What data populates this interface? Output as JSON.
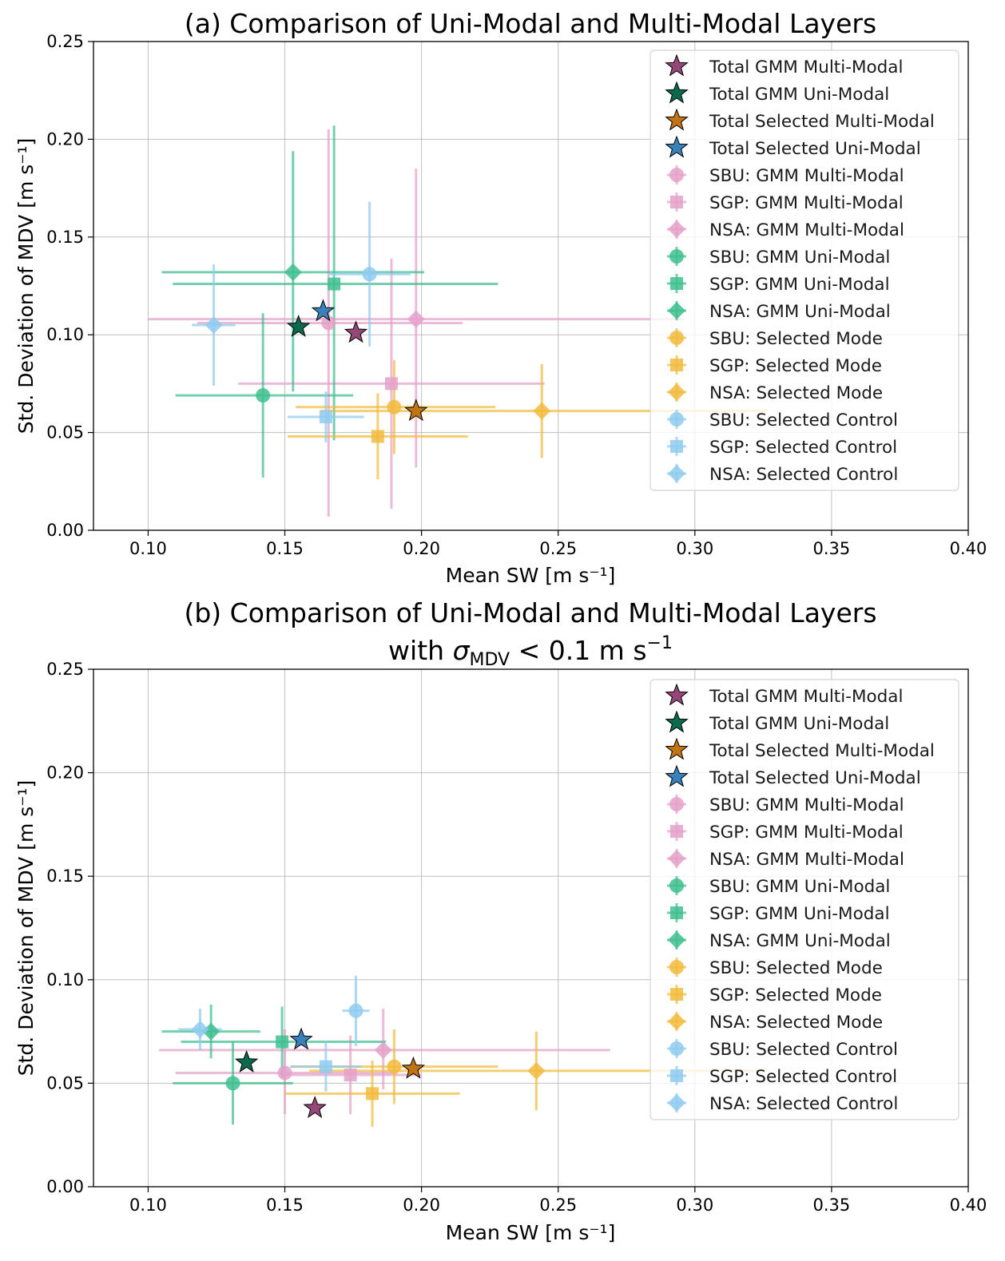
{
  "colors": {
    "gmm_multi": "#e5a1c9",
    "gmm_uni": "#3fbf8f",
    "sel_mode": "#f2bb3e",
    "sel_control": "#8fcbf0",
    "total_gmm_multi": "#954778",
    "total_gmm_uni": "#0a6a4b",
    "total_sel_multi": "#c07413",
    "total_sel_uni": "#3a80b9"
  },
  "chart_data": [
    {
      "type": "scatter",
      "title_lines": [
        "(a) Comparison of Uni-Modal and Multi-Modal Layers"
      ],
      "xlabel": "Mean SW [m s⁻¹]",
      "ylabel": "Std. Deviation of MDV [m s⁻¹]",
      "xlim": [
        0.08,
        0.4
      ],
      "ylim": [
        0.0,
        0.25
      ],
      "xticks": [
        0.1,
        0.15,
        0.2,
        0.25,
        0.3,
        0.35,
        0.4
      ],
      "xtick_labels": [
        "0.10",
        "0.15",
        "0.20",
        "0.25",
        "0.30",
        "0.35",
        "0.40"
      ],
      "yticks": [
        0.0,
        0.05,
        0.1,
        0.15,
        0.2,
        0.25
      ],
      "ytick_labels": [
        "0.00",
        "0.05",
        "0.10",
        "0.15",
        "0.20",
        "0.25"
      ],
      "grid": true,
      "legend_position": "top-right",
      "series": [
        {
          "name": "Total GMM Multi-Modal",
          "marker": "star",
          "color_key": "total_gmm_multi",
          "x": 0.176,
          "y": 0.101,
          "xerr": [
            0,
            0
          ],
          "yerr": [
            0,
            0
          ]
        },
        {
          "name": "Total GMM Uni-Modal",
          "marker": "star",
          "color_key": "total_gmm_uni",
          "x": 0.155,
          "y": 0.104,
          "xerr": [
            0,
            0
          ],
          "yerr": [
            0,
            0
          ]
        },
        {
          "name": "Total Selected Multi-Modal",
          "marker": "star",
          "color_key": "total_sel_multi",
          "x": 0.198,
          "y": 0.061,
          "xerr": [
            0,
            0
          ],
          "yerr": [
            0,
            0
          ]
        },
        {
          "name": "Total Selected Uni-Modal",
          "marker": "star",
          "color_key": "total_sel_uni",
          "x": 0.164,
          "y": 0.112,
          "xerr": [
            0,
            0
          ],
          "yerr": [
            0,
            0
          ]
        },
        {
          "name": "SBU: GMM Multi-Modal",
          "marker": "circle",
          "color_key": "gmm_multi",
          "x": 0.166,
          "y": 0.106,
          "xerr": [
            0.048,
            0.049
          ],
          "yerr": [
            0.099,
            0.099
          ]
        },
        {
          "name": "SGP: GMM Multi-Modal",
          "marker": "square",
          "color_key": "gmm_multi",
          "x": 0.189,
          "y": 0.075,
          "xerr": [
            0.056,
            0.056
          ],
          "yerr": [
            0.064,
            0.064
          ]
        },
        {
          "name": "NSA: GMM Multi-Modal",
          "marker": "diamond",
          "color_key": "gmm_multi",
          "x": 0.198,
          "y": 0.108,
          "xerr": [
            0.098,
            0.098
          ],
          "yerr": [
            0.076,
            0.077
          ]
        },
        {
          "name": "SBU: GMM Uni-Modal",
          "marker": "circle",
          "color_key": "gmm_uni",
          "x": 0.142,
          "y": 0.069,
          "xerr": [
            0.032,
            0.033
          ],
          "yerr": [
            0.042,
            0.042
          ]
        },
        {
          "name": "SGP: GMM Uni-Modal",
          "marker": "square",
          "color_key": "gmm_uni",
          "x": 0.168,
          "y": 0.126,
          "xerr": [
            0.059,
            0.06
          ],
          "yerr": [
            0.08,
            0.081
          ]
        },
        {
          "name": "NSA: GMM Uni-Modal",
          "marker": "diamond",
          "color_key": "gmm_uni",
          "x": 0.153,
          "y": 0.132,
          "xerr": [
            0.048,
            0.048
          ],
          "yerr": [
            0.061,
            0.062
          ]
        },
        {
          "name": "SBU: Selected Mode",
          "marker": "circle",
          "color_key": "sel_mode",
          "x": 0.19,
          "y": 0.063,
          "xerr": [
            0.036,
            0.037
          ],
          "yerr": [
            0.024,
            0.024
          ]
        },
        {
          "name": "SGP: Selected Mode",
          "marker": "square",
          "color_key": "sel_mode",
          "x": 0.184,
          "y": 0.048,
          "xerr": [
            0.033,
            0.033
          ],
          "yerr": [
            0.022,
            0.022
          ]
        },
        {
          "name": "NSA: Selected Mode",
          "marker": "diamond",
          "color_key": "sel_mode",
          "x": 0.244,
          "y": 0.061,
          "xerr": [
            0.081,
            0.082
          ],
          "yerr": [
            0.024,
            0.024
          ]
        },
        {
          "name": "SBU: Selected Control",
          "marker": "circle",
          "color_key": "sel_control",
          "x": 0.181,
          "y": 0.131,
          "xerr": [
            0.015,
            0.015
          ],
          "yerr": [
            0.037,
            0.037
          ]
        },
        {
          "name": "SGP: Selected Control",
          "marker": "square",
          "color_key": "sel_control",
          "x": 0.165,
          "y": 0.058,
          "xerr": [
            0.014,
            0.014
          ],
          "yerr": [
            0.013,
            0.013
          ]
        },
        {
          "name": "NSA: Selected Control",
          "marker": "diamond",
          "color_key": "sel_control",
          "x": 0.124,
          "y": 0.105,
          "xerr": [
            0.008,
            0.008
          ],
          "yerr": [
            0.031,
            0.031
          ]
        }
      ]
    },
    {
      "type": "scatter",
      "title_lines": [
        "(b) Comparison of Uni-Modal and Multi-Modal Layers",
        "with σMDV < 0.1 m s⁻¹"
      ],
      "title_sigma": "σ",
      "title_sub": "MDV",
      "title_rest": " < 0.1 m s",
      "title_with": "with ",
      "title_sup": "−1",
      "xlabel": "Mean SW [m s⁻¹]",
      "ylabel": "Std. Deviation of MDV [m s⁻¹]",
      "xlim": [
        0.08,
        0.4
      ],
      "ylim": [
        0.0,
        0.25
      ],
      "xticks": [
        0.1,
        0.15,
        0.2,
        0.25,
        0.3,
        0.35,
        0.4
      ],
      "xtick_labels": [
        "0.10",
        "0.15",
        "0.20",
        "0.25",
        "0.30",
        "0.35",
        "0.40"
      ],
      "yticks": [
        0.0,
        0.05,
        0.1,
        0.15,
        0.2,
        0.25
      ],
      "ytick_labels": [
        "0.00",
        "0.05",
        "0.10",
        "0.15",
        "0.20",
        "0.25"
      ],
      "grid": true,
      "legend_position": "top-right",
      "series": [
        {
          "name": "Total GMM Multi-Modal",
          "marker": "star",
          "color_key": "total_gmm_multi",
          "x": 0.161,
          "y": 0.038,
          "xerr": [
            0,
            0
          ],
          "yerr": [
            0,
            0
          ]
        },
        {
          "name": "Total GMM Uni-Modal",
          "marker": "star",
          "color_key": "total_gmm_uni",
          "x": 0.136,
          "y": 0.06,
          "xerr": [
            0,
            0
          ],
          "yerr": [
            0,
            0
          ]
        },
        {
          "name": "Total Selected Multi-Modal",
          "marker": "star",
          "color_key": "total_sel_multi",
          "x": 0.197,
          "y": 0.057,
          "xerr": [
            0,
            0
          ],
          "yerr": [
            0,
            0
          ]
        },
        {
          "name": "Total Selected Uni-Modal",
          "marker": "star",
          "color_key": "total_sel_uni",
          "x": 0.156,
          "y": 0.071,
          "xerr": [
            0,
            0
          ],
          "yerr": [
            0,
            0
          ]
        },
        {
          "name": "SBU: GMM Multi-Modal",
          "marker": "circle",
          "color_key": "gmm_multi",
          "x": 0.15,
          "y": 0.055,
          "xerr": [
            0.04,
            0.041
          ],
          "yerr": [
            0.02,
            0.021
          ]
        },
        {
          "name": "SGP: GMM Multi-Modal",
          "marker": "square",
          "color_key": "gmm_multi",
          "x": 0.174,
          "y": 0.054,
          "xerr": [
            0.025,
            0.026
          ],
          "yerr": [
            0.019,
            0.019
          ]
        },
        {
          "name": "NSA: GMM Multi-Modal",
          "marker": "diamond",
          "color_key": "gmm_multi",
          "x": 0.186,
          "y": 0.066,
          "xerr": [
            0.082,
            0.083
          ],
          "yerr": [
            0.019,
            0.02
          ]
        },
        {
          "name": "SBU: GMM Uni-Modal",
          "marker": "circle",
          "color_key": "gmm_uni",
          "x": 0.131,
          "y": 0.05,
          "xerr": [
            0.022,
            0.022
          ],
          "yerr": [
            0.02,
            0.02
          ]
        },
        {
          "name": "SGP: GMM Uni-Modal",
          "marker": "square",
          "color_key": "gmm_uni",
          "x": 0.149,
          "y": 0.07,
          "xerr": [
            0.037,
            0.038
          ],
          "yerr": [
            0.017,
            0.017
          ]
        },
        {
          "name": "NSA: GMM Uni-Modal",
          "marker": "diamond",
          "color_key": "gmm_uni",
          "x": 0.123,
          "y": 0.075,
          "xerr": [
            0.018,
            0.018
          ],
          "yerr": [
            0.013,
            0.013
          ]
        },
        {
          "name": "SBU: Selected Mode",
          "marker": "circle",
          "color_key": "sel_mode",
          "x": 0.19,
          "y": 0.058,
          "xerr": [
            0.038,
            0.038
          ],
          "yerr": [
            0.018,
            0.018
          ]
        },
        {
          "name": "SGP: Selected Mode",
          "marker": "square",
          "color_key": "sel_mode",
          "x": 0.182,
          "y": 0.045,
          "xerr": [
            0.032,
            0.032
          ],
          "yerr": [
            0.016,
            0.016
          ]
        },
        {
          "name": "NSA: Selected Mode",
          "marker": "diamond",
          "color_key": "sel_mode",
          "x": 0.242,
          "y": 0.056,
          "xerr": [
            0.083,
            0.083
          ],
          "yerr": [
            0.019,
            0.019
          ]
        },
        {
          "name": "SBU: Selected Control",
          "marker": "circle",
          "color_key": "sel_control",
          "x": 0.176,
          "y": 0.085,
          "xerr": [
            0.005,
            0.005
          ],
          "yerr": [
            0.017,
            0.017
          ]
        },
        {
          "name": "SGP: Selected Control",
          "marker": "square",
          "color_key": "sel_control",
          "x": 0.165,
          "y": 0.058,
          "xerr": [
            0.013,
            0.013
          ],
          "yerr": [
            0.012,
            0.012
          ]
        },
        {
          "name": "NSA: Selected Control",
          "marker": "diamond",
          "color_key": "sel_control",
          "x": 0.119,
          "y": 0.076,
          "xerr": [
            0.008,
            0.008
          ],
          "yerr": [
            0.01,
            0.01
          ]
        }
      ]
    }
  ]
}
